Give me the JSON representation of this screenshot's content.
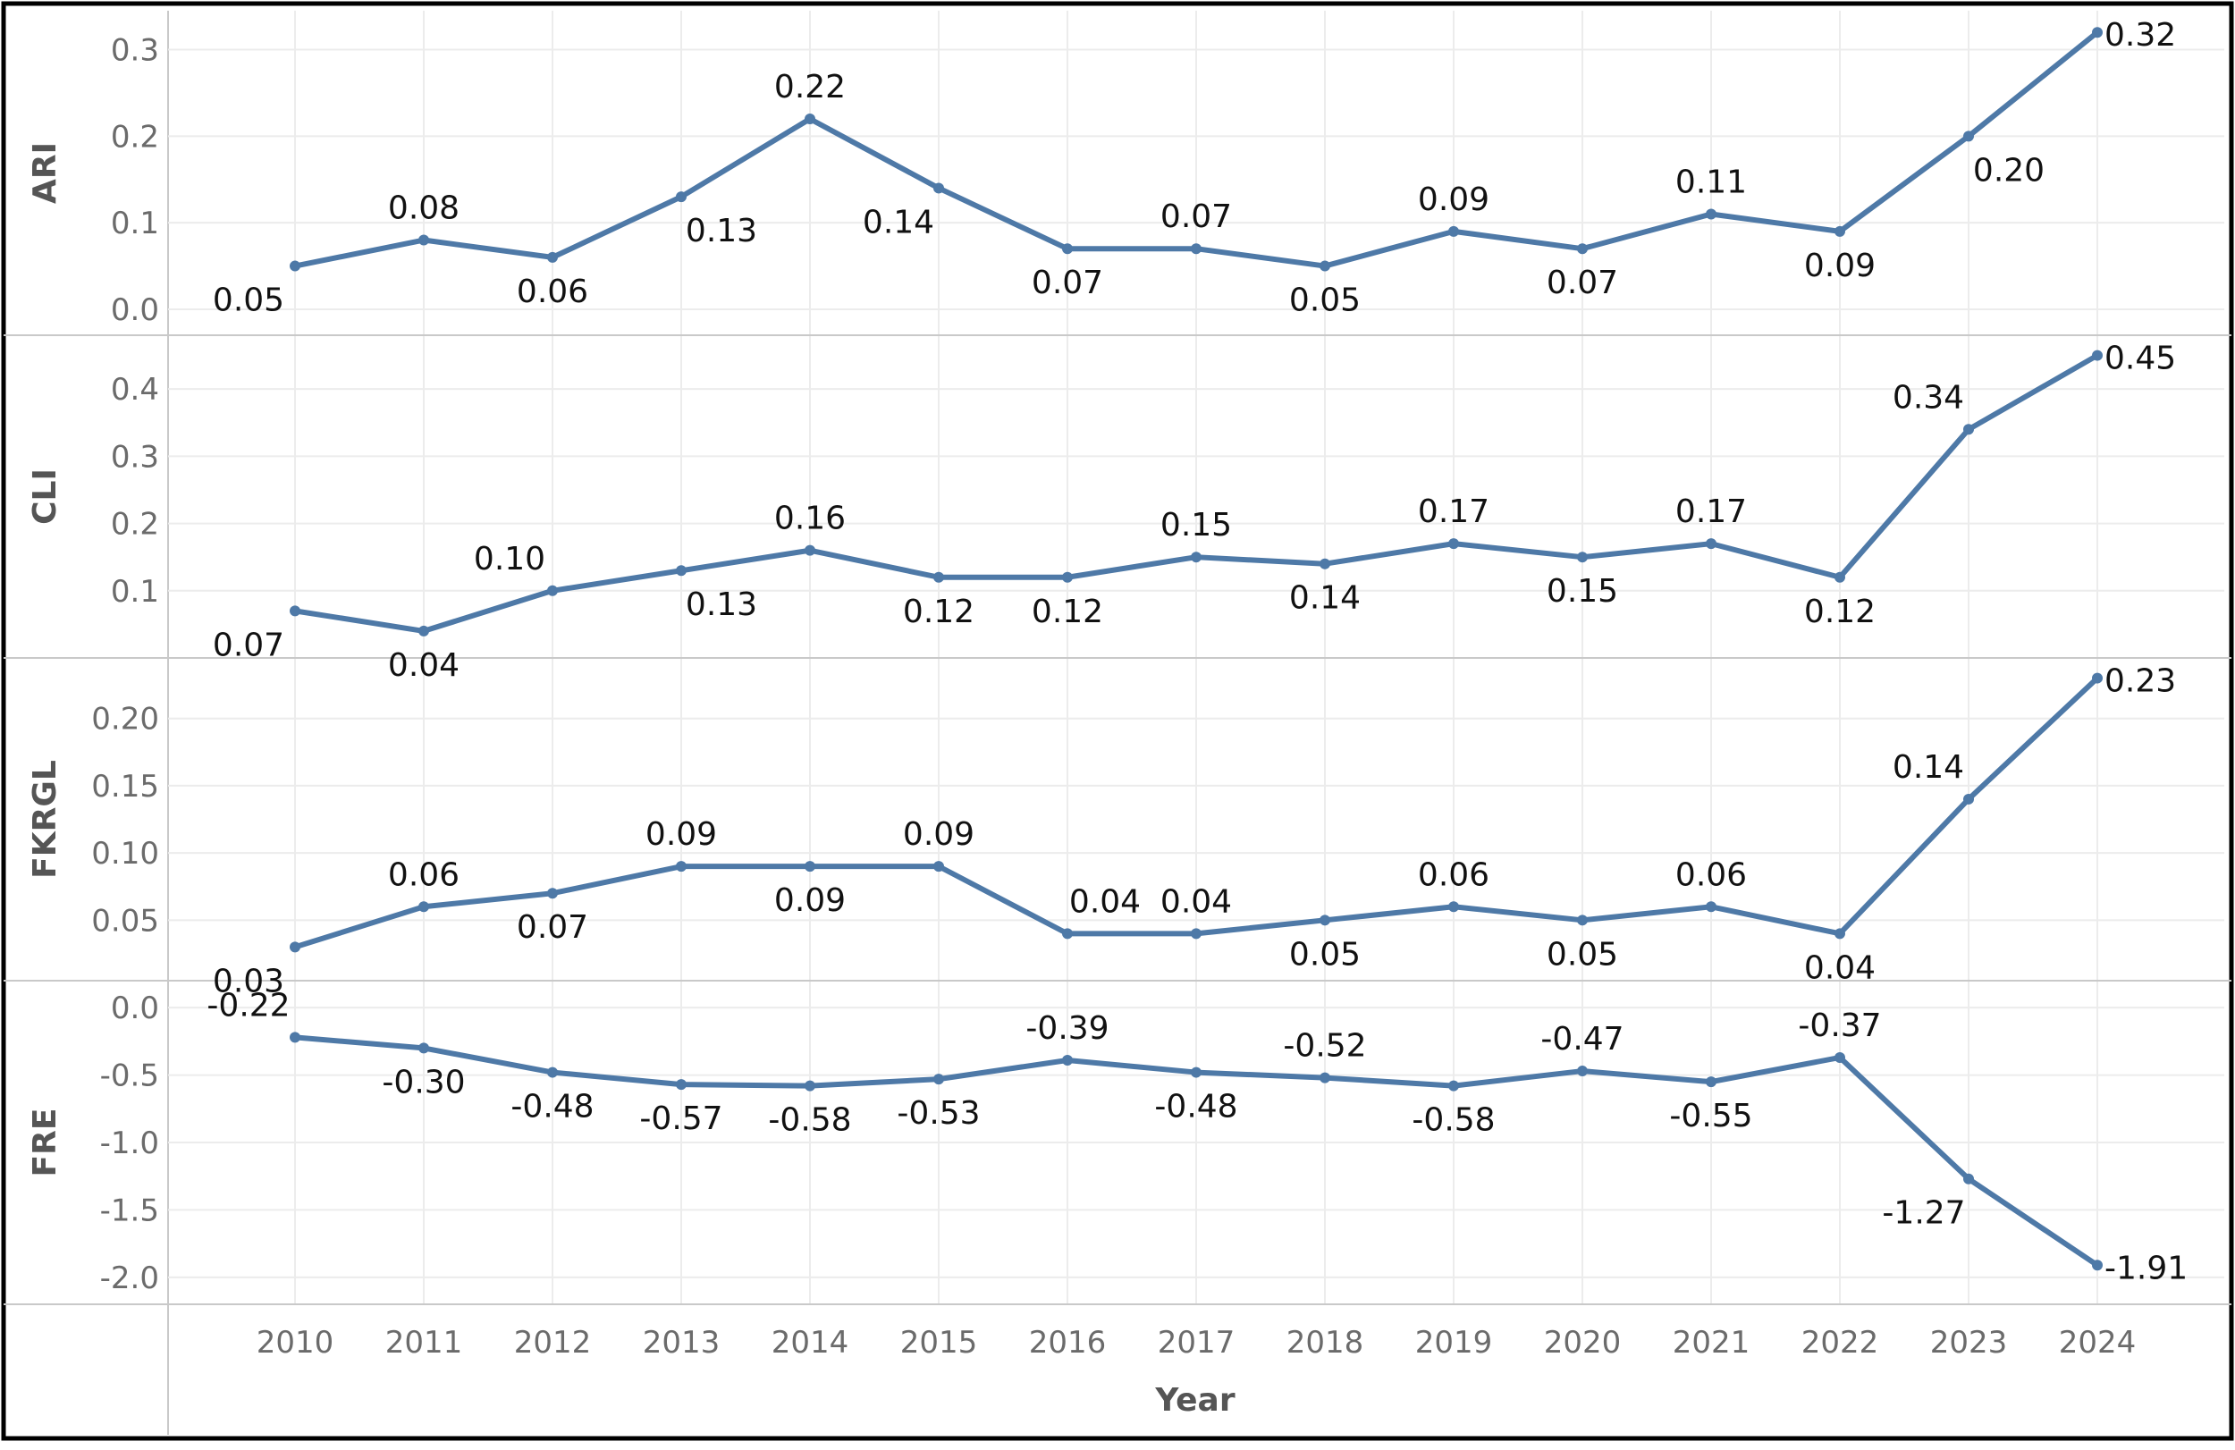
{
  "chart_data": {
    "type": "line",
    "layout": "stacked-panels",
    "xlabel": "Year",
    "categories": [
      "2010",
      "2011",
      "2012",
      "2013",
      "2014",
      "2015",
      "2016",
      "2017",
      "2018",
      "2019",
      "2020",
      "2021",
      "2022",
      "2023",
      "2024"
    ],
    "line_color": "#4e79a7",
    "grid": true,
    "panels": [
      {
        "ylabel": "ARI",
        "ylim": [
          -0.03,
          0.345
        ],
        "yticks": [
          0.0,
          0.1,
          0.2,
          0.3
        ],
        "ytick_labels": [
          "0.0",
          "0.1",
          "0.2",
          "0.3"
        ],
        "values": [
          0.05,
          0.08,
          0.06,
          0.13,
          0.22,
          0.14,
          0.07,
          0.07,
          0.05,
          0.09,
          0.07,
          0.11,
          0.09,
          0.2,
          0.32
        ],
        "data_labels": [
          "0.05",
          "0.08",
          "0.06",
          "0.13",
          "0.22",
          "0.14",
          "0.07",
          "0.07",
          "0.05",
          "0.09",
          "0.07",
          "0.11",
          "0.09",
          "0.20",
          "0.32"
        ]
      },
      {
        "ylabel": "CLI",
        "ylim": [
          0.0,
          0.48
        ],
        "yticks": [
          0.1,
          0.2,
          0.3,
          0.4
        ],
        "ytick_labels": [
          "0.1",
          "0.2",
          "0.3",
          "0.4"
        ],
        "values": [
          0.07,
          0.04,
          0.1,
          0.13,
          0.16,
          0.12,
          0.12,
          0.15,
          0.14,
          0.17,
          0.15,
          0.17,
          0.12,
          0.34,
          0.45
        ],
        "data_labels": [
          "0.07",
          "0.04",
          "0.10",
          "0.13",
          "0.16",
          "0.12",
          "0.12",
          "0.15",
          "0.14",
          "0.17",
          "0.15",
          "0.17",
          "0.12",
          "0.34",
          "0.45"
        ]
      },
      {
        "ylabel": "FKRGL",
        "ylim": [
          0.005,
          0.245
        ],
        "yticks": [
          0.05,
          0.1,
          0.15,
          0.2
        ],
        "ytick_labels": [
          "0.05",
          "0.10",
          "0.15",
          "0.20"
        ],
        "values": [
          0.03,
          0.06,
          0.07,
          0.09,
          0.09,
          0.09,
          0.04,
          0.04,
          0.05,
          0.06,
          0.05,
          0.06,
          0.04,
          0.14,
          0.23
        ],
        "data_labels": [
          "0.03",
          "0.06",
          "0.07",
          "0.09",
          "0.09",
          "0.09",
          "0.04",
          "0.04",
          "0.05",
          "0.06",
          "0.05",
          "0.06",
          "0.04",
          "0.14",
          "0.23"
        ]
      },
      {
        "ylabel": "FRE",
        "ylim": [
          -2.2,
          0.2
        ],
        "yticks": [
          0.0,
          -0.5,
          -1.0,
          -1.5,
          -2.0
        ],
        "ytick_labels": [
          "0.0",
          "-0.5",
          "-1.0",
          "-1.5",
          "-2.0"
        ],
        "values": [
          -0.22,
          -0.3,
          -0.48,
          -0.57,
          -0.58,
          -0.53,
          -0.39,
          -0.48,
          -0.52,
          -0.58,
          -0.47,
          -0.55,
          -0.37,
          -1.27,
          -1.91
        ],
        "data_labels": [
          "-0.22",
          "-0.30",
          "-0.48",
          "-0.57",
          "-0.58",
          "-0.53",
          "-0.39",
          "-0.48",
          "-0.52",
          "-0.58",
          "-0.47",
          "-0.55",
          "-0.37",
          "-1.27",
          "-1.91"
        ]
      }
    ]
  }
}
